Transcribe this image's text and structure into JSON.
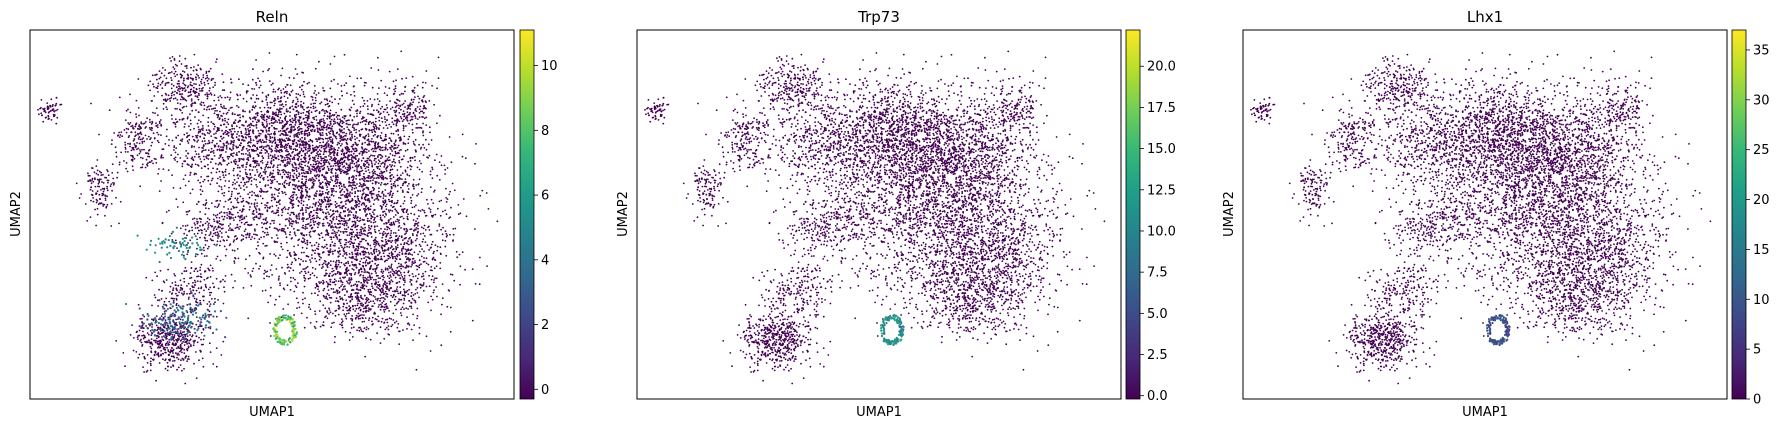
{
  "chart_data": [
    {
      "type": "scatter",
      "title": "Reln",
      "xlabel": "UMAP1",
      "ylabel": "UMAP2",
      "colorbar": {
        "colormap": "viridis",
        "range": [
          -0.3,
          11.1
        ],
        "ticks": [
          "0",
          "2",
          "4",
          "6",
          "8",
          "10"
        ],
        "tick_values": [
          0,
          2,
          4,
          6,
          8,
          10
        ]
      },
      "hotspots": [
        {
          "region": "lower-left cluster",
          "value_range": [
            2,
            5
          ]
        },
        {
          "region": "small cluster above lower-left",
          "value_range": [
            4,
            6
          ]
        },
        {
          "region": "small ring cluster bottom-center",
          "value_range": [
            6,
            11
          ]
        }
      ]
    },
    {
      "type": "scatter",
      "title": "Trp73",
      "xlabel": "UMAP1",
      "ylabel": "UMAP2",
      "colorbar": {
        "colormap": "viridis",
        "range": [
          -0.2,
          22.2
        ],
        "ticks": [
          "0.0",
          "2.5",
          "5.0",
          "7.5",
          "10.0",
          "12.5",
          "15.0",
          "17.5",
          "20.0"
        ],
        "tick_values": [
          0,
          2.5,
          5,
          7.5,
          10,
          12.5,
          15,
          17.5,
          20
        ]
      },
      "hotspots": [
        {
          "region": "small ring cluster bottom-center",
          "value_range": [
            8,
            14
          ]
        }
      ]
    },
    {
      "type": "scatter",
      "title": "Lhx1",
      "xlabel": "UMAP1",
      "ylabel": "UMAP2",
      "colorbar": {
        "colormap": "viridis",
        "range": [
          0,
          37
        ],
        "ticks": [
          "0",
          "5",
          "10",
          "15",
          "20",
          "25",
          "30",
          "35"
        ],
        "tick_values": [
          0,
          5,
          10,
          15,
          20,
          25,
          30,
          35
        ]
      },
      "hotspots": [
        {
          "region": "small ring cluster bottom-center",
          "value_range": [
            6,
            12
          ]
        }
      ]
    }
  ],
  "colors": {
    "background_points": "#440154",
    "viridis_stops": [
      "#440154",
      "#482878",
      "#3e4989",
      "#31688e",
      "#26828e",
      "#1f9e89",
      "#35b779",
      "#6ece58",
      "#b5de2b",
      "#fde725"
    ]
  }
}
